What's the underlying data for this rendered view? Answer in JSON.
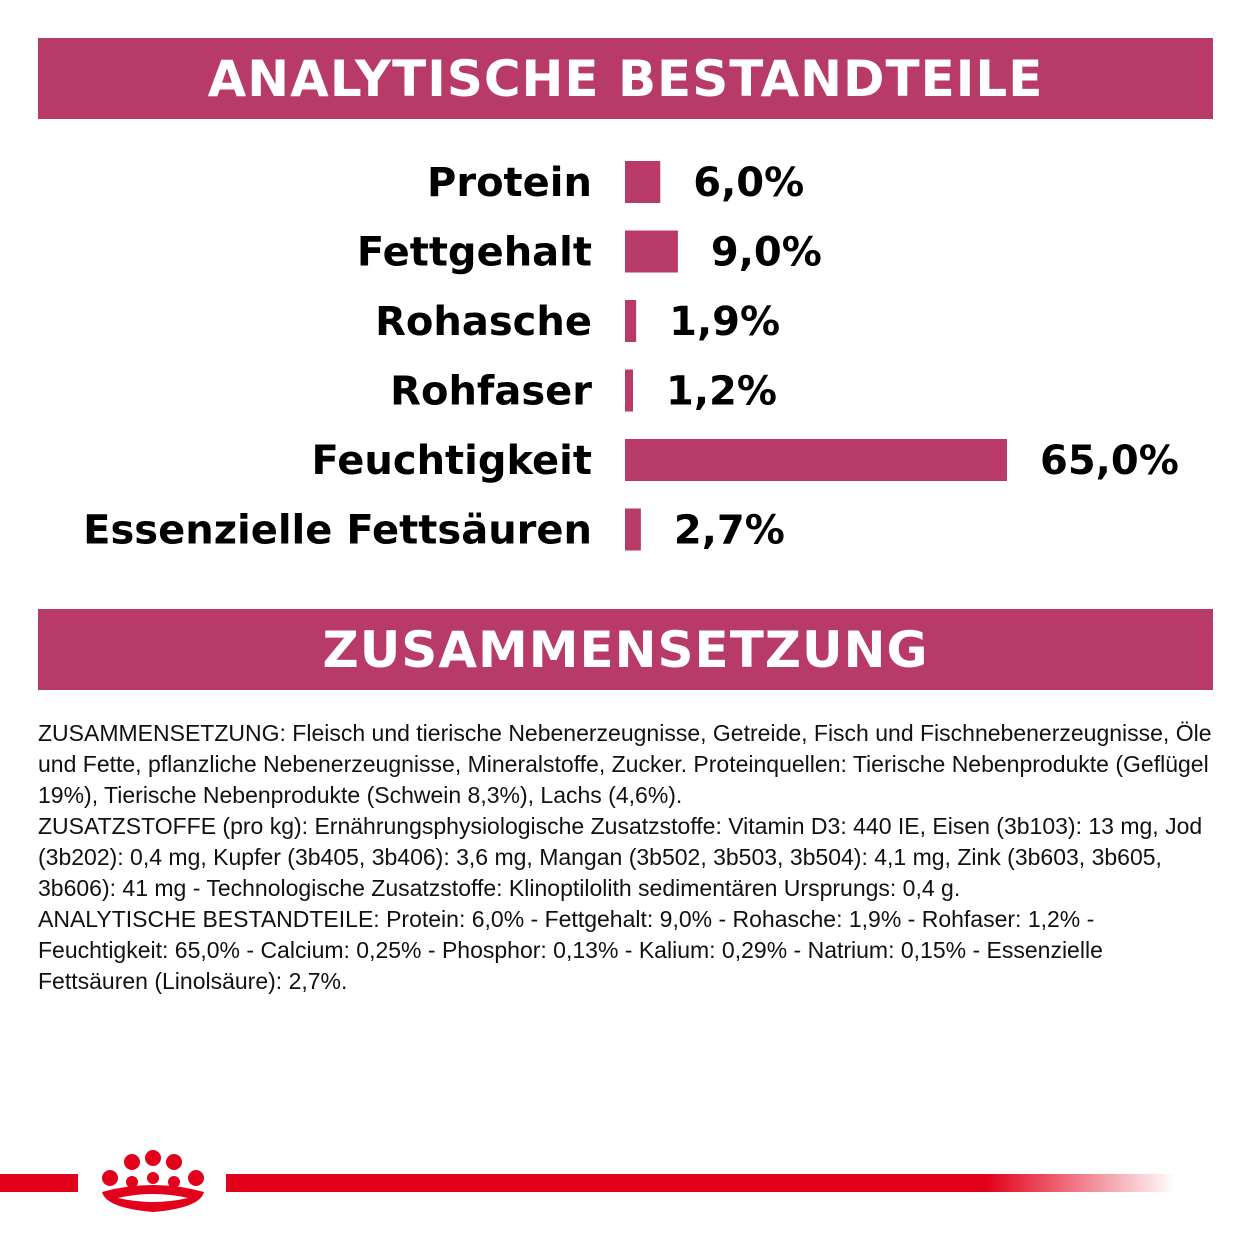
{
  "sections": {
    "analytics_title": "ANALYTISCHE BESTANDTEILE",
    "composition_title": "ZUSAMMENSETZUNG"
  },
  "chart_data": {
    "type": "bar",
    "orientation": "horizontal",
    "categories": [
      "Protein",
      "Fettgehalt",
      "Rohasche",
      "Rohfaser",
      "Feuchtigkeit",
      "Essenzielle Fettsäuren"
    ],
    "values": [
      6.0,
      9.0,
      1.9,
      1.2,
      65.0,
      2.7
    ],
    "value_labels": [
      "6,0%",
      "9,0%",
      "1,9%",
      "1,2%",
      "65,0%",
      "2,7%"
    ],
    "unit": "%",
    "bar_color": "#b83a68",
    "xlim": [
      0,
      65
    ],
    "grid": false,
    "legend": "none"
  },
  "composition": {
    "paragraphs": [
      "ZUSAMMENSETZUNG: Fleisch und tierische Nebenerzeugnisse, Getreide, Fisch und Fischnebenerzeugnisse, Öle und Fette, pflanzliche Nebenerzeugnisse, Mineralstoffe, Zucker. Proteinquellen: Tierische Nebenprodukte (Geflügel 19%), Tierische Nebenprodukte (Schwein 8,3%), Lachs (4,6%).",
      "ZUSATZSTOFFE (pro kg): Ernährungsphysiologische Zusatzstoffe: Vitamin D3: 440 IE, Eisen (3b103): 13 mg, Jod (3b202): 0,4 mg, Kupfer (3b405, 3b406): 3,6 mg, Mangan (3b502, 3b503, 3b504): 4,1 mg, Zink (3b603, 3b605, 3b606): 41 mg - Technologische Zusatzstoffe: Klinoptilolith sedimentären Ursprungs: 0,4 g.",
      "ANALYTISCHE BESTANDTEILE: Protein: 6,0% - Fettgehalt: 9,0% - Rohasche: 1,9% - Rohfaser: 1,2% - Feuchtigkeit: 65,0% - Calcium: 0,25% - Phosphor: 0,13% - Kalium: 0,29% - Natrium: 0,15% - Essenzielle Fettsäuren (Linolsäure): 2,7%."
    ]
  },
  "brand": {
    "logo_icon": "royal-canin-crown-icon",
    "accent_color": "#e2001a"
  }
}
